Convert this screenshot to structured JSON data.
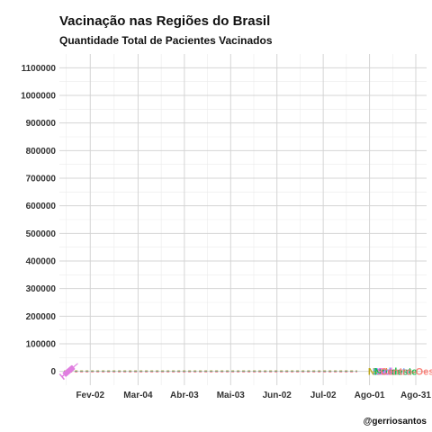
{
  "chart_data": {
    "type": "line",
    "title": "Vacinação nas Regiões do Brasil",
    "subtitle": "Quantidade Total de Pacientes Vacinados",
    "caption": "@gerriosantos",
    "xlabel": "",
    "ylabel": "",
    "x_tick_labels": [
      "Fev-02",
      "Mar-04",
      "Abr-03",
      "Mai-03",
      "Jun-02",
      "Jul-02",
      "Ago-01",
      "Ago-31"
    ],
    "x_tick_days": [
      20,
      51,
      81,
      111,
      141,
      171,
      201,
      231
    ],
    "xlim_days": [
      0,
      238
    ],
    "ylim": [
      -50000,
      1150000
    ],
    "y_ticks": [
      0,
      100000,
      200000,
      300000,
      400000,
      500000,
      600000,
      700000,
      800000,
      900000,
      1000000,
      1100000
    ],
    "grid": true,
    "legend": "none",
    "series": [
      {
        "name": "Norte",
        "color": "#B79F00"
      },
      {
        "name": "Sudeste",
        "color": "#619CFF"
      },
      {
        "name": "Nordeste",
        "color": "#00BA38"
      },
      {
        "name": "Sul",
        "color": "#F564E3"
      },
      {
        "name": "Centro-Oeste",
        "color": "#F8766D"
      }
    ],
    "vaccine_marker": {
      "color": "#E07FE0"
    }
  }
}
